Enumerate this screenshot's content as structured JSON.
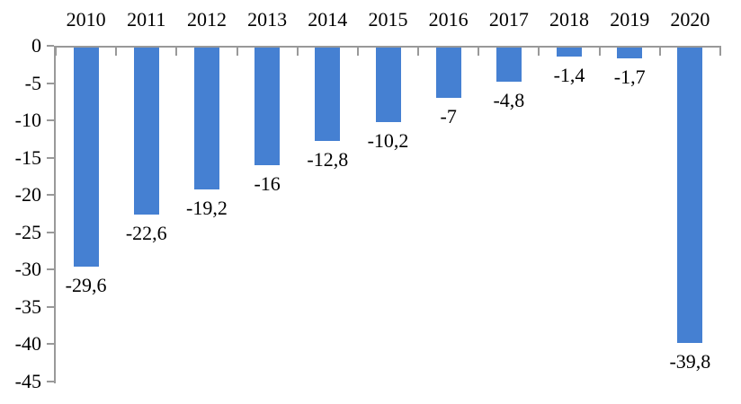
{
  "chart_data": {
    "type": "bar",
    "categories": [
      "2010",
      "2011",
      "2012",
      "2013",
      "2014",
      "2015",
      "2016",
      "2017",
      "2018",
      "2019",
      "2020"
    ],
    "values": [
      -29.6,
      -22.6,
      -19.2,
      -16,
      -12.8,
      -10.2,
      -7,
      -4.8,
      -1.4,
      -1.7,
      -39.8
    ],
    "data_labels": [
      "-29,6",
      "-22,6",
      "-19,2",
      "-16",
      "-12,8",
      "-10,2",
      "-7",
      "-4,8",
      "-1,4",
      "-1,7",
      "-39,8"
    ],
    "title": "",
    "xlabel": "",
    "ylabel": "",
    "ylim": [
      -45,
      0
    ],
    "yticks": [
      0,
      -5,
      -10,
      -15,
      -20,
      -25,
      -30,
      -35,
      -40,
      -45
    ],
    "ytick_labels": [
      "0",
      "-5",
      "-10",
      "-15",
      "-20",
      "-25",
      "-30",
      "-35",
      "-40",
      "-45"
    ],
    "grid": false,
    "legend": false,
    "category_axis_position": "top-zero-line",
    "data_label_position": "outside-end-below",
    "colors": {
      "bar": "#4580D2",
      "axis": "#999999",
      "text": "#000000",
      "background": "#FFFFFF"
    }
  }
}
